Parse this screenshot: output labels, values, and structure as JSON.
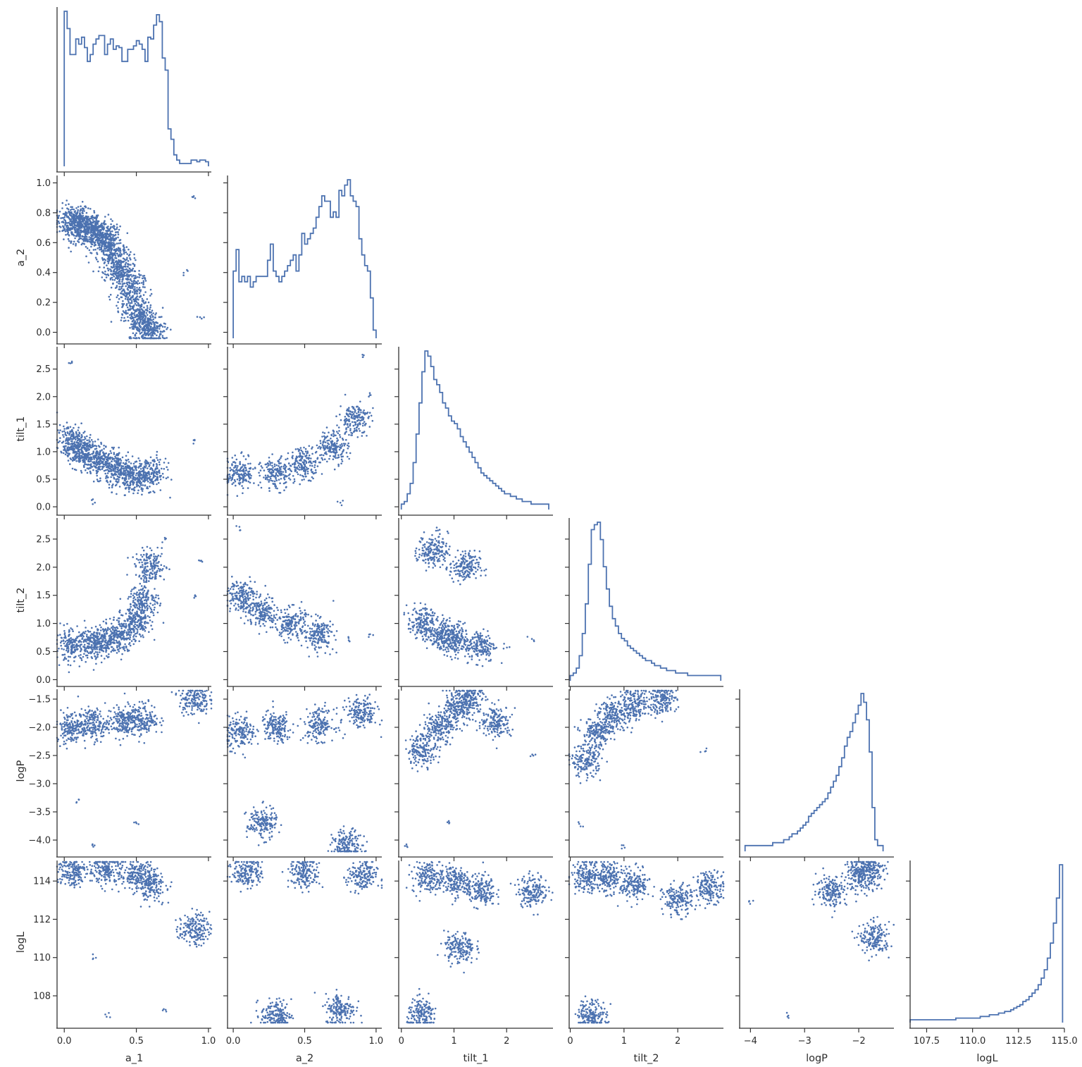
{
  "colors": {
    "series": "#4c72b0",
    "axis": "#333333",
    "background": "#ffffff"
  },
  "chart_data": {
    "type": "scatter",
    "layout": "corner pair plot",
    "diagonal": "step histogram",
    "off_diagonal": "scatter",
    "grid": false,
    "legend": "none",
    "variables": [
      "a_1",
      "a_2",
      "tilt_1",
      "tilt_2",
      "logP",
      "logL"
    ],
    "axes": {
      "a_1": {
        "label": "a_1",
        "range": [
          -0.05,
          1.02
        ],
        "ticks": [
          0.0,
          0.5,
          1.0
        ],
        "tick_labels": [
          "0.0",
          "0.5",
          "1.0"
        ]
      },
      "a_2": {
        "label": "a_2",
        "range": [
          -0.04,
          1.04
        ],
        "ticks": [
          0.0,
          0.5,
          1.0
        ],
        "tick_labels": [
          "0.0",
          "0.5",
          "1.0"
        ],
        "yticks": [
          0.0,
          0.2,
          0.4,
          0.6,
          0.8,
          1.0
        ],
        "ytick_labels": [
          "0.0",
          "0.2",
          "0.4",
          "0.6",
          "0.8",
          "1.0"
        ]
      },
      "tilt_1": {
        "label": "tilt_1",
        "range": [
          -0.05,
          2.88
        ],
        "ticks": [
          0,
          1,
          2
        ],
        "tick_labels": [
          "0",
          "1",
          "2"
        ],
        "yticks": [
          0.0,
          0.5,
          1.0,
          1.5,
          2.0,
          2.5
        ],
        "ytick_labels": [
          "0.0",
          "0.5",
          "1.0",
          "1.5",
          "2.0",
          "2.5"
        ]
      },
      "tilt_2": {
        "label": "tilt_2",
        "range": [
          -0.02,
          2.85
        ],
        "ticks": [
          0,
          1,
          2
        ],
        "tick_labels": [
          "0",
          "1",
          "2"
        ],
        "yticks": [
          0.0,
          0.5,
          1.0,
          1.5,
          2.0,
          2.5
        ],
        "ytick_labels": [
          "0.0",
          "0.5",
          "1.0",
          "1.5",
          "2.0",
          "2.5"
        ]
      },
      "logP": {
        "label": "logP",
        "range": [
          -4.2,
          -1.35
        ],
        "ticks": [
          -4,
          -3,
          -2
        ],
        "tick_labels": [
          "−4",
          "−3",
          "−2"
        ],
        "yticks": [
          -4.0,
          -3.5,
          -3.0,
          -2.5,
          -2.0,
          -1.5
        ],
        "ytick_labels": [
          "−4.0",
          "−3.5",
          "−3.0",
          "−2.5",
          "−2.0",
          "−1.5"
        ]
      },
      "logL": {
        "label": "logL",
        "range": [
          106.6,
          115.0
        ],
        "ticks": [
          107.5,
          110.0,
          112.5,
          115.0
        ],
        "tick_labels": [
          "107.5",
          "110.0",
          "112.5",
          "115.0"
        ],
        "yticks": [
          108,
          110,
          112,
          114
        ],
        "ytick_labels": [
          "108",
          "110",
          "112",
          "114"
        ]
      }
    },
    "histograms": {
      "a_1": {
        "start": 0.0,
        "end": 1.0,
        "counts": [
          88,
          78,
          63,
          63,
          72,
          69,
          73,
          67,
          59,
          63,
          69,
          72,
          74,
          74,
          63,
          69,
          72,
          66,
          68,
          67,
          59,
          59,
          66,
          66,
          68,
          71,
          69,
          66,
          59,
          73,
          72,
          80,
          86,
          82,
          61,
          54,
          20,
          14,
          5,
          2,
          0,
          0,
          0,
          0,
          2,
          2,
          1,
          2,
          2,
          1
        ]
      },
      "a_2": {
        "start": 0.0,
        "end": 1.0,
        "counts": [
          12,
          16,
          10,
          11,
          10,
          11,
          9,
          10,
          11,
          11,
          11,
          11,
          14,
          17,
          12,
          11,
          10,
          11,
          12,
          13,
          14,
          15,
          12,
          15,
          19,
          17,
          18,
          19,
          20,
          22,
          24,
          26,
          25,
          25,
          22,
          23,
          22,
          27,
          26,
          28,
          29,
          26,
          25,
          24,
          18,
          15,
          13,
          12,
          7,
          1
        ]
      },
      "tilt_1": {
        "start": 0.0,
        "end": 2.8,
        "counts": [
          1,
          2,
          5,
          9,
          17,
          28,
          40,
          52,
          60,
          58,
          54,
          49,
          47,
          44,
          40,
          38,
          35,
          33,
          32,
          30,
          27,
          25,
          23,
          21,
          19,
          17,
          15,
          13,
          12,
          11,
          10,
          9,
          8,
          7,
          6,
          5,
          5,
          4,
          4,
          3,
          3,
          2,
          2,
          2,
          1,
          1,
          1,
          1,
          1,
          1
        ]
      },
      "tilt_2": {
        "start": 0.0,
        "end": 2.8,
        "counts": [
          1,
          2,
          4,
          9,
          18,
          30,
          46,
          60,
          62,
          63,
          56,
          45,
          36,
          29,
          24,
          21,
          18,
          16,
          15,
          13,
          12,
          11,
          10,
          9,
          8,
          7,
          7,
          6,
          5,
          5,
          4,
          4,
          3,
          3,
          3,
          2,
          2,
          2,
          2,
          1,
          1,
          1,
          1,
          1,
          1,
          1,
          1,
          1,
          1,
          1
        ]
      },
      "logP": {
        "start": -4.1,
        "end": -1.55,
        "counts": [
          1,
          1,
          1,
          1,
          1,
          1,
          1,
          1,
          1,
          1,
          2,
          2,
          2,
          2,
          3,
          3,
          4,
          5,
          5,
          6,
          7,
          8,
          9,
          11,
          12,
          13,
          14,
          15,
          16,
          17,
          19,
          21,
          23,
          25,
          28,
          31,
          35,
          38,
          40,
          43,
          46,
          49,
          53,
          50,
          44,
          33,
          14,
          3,
          1,
          1
        ]
      },
      "logL": {
        "start": 106.6,
        "end": 114.9,
        "counts": [
          0,
          0,
          0,
          0,
          0,
          0,
          0,
          0,
          0,
          0,
          0,
          0,
          0,
          0,
          0,
          1,
          1,
          1,
          1,
          1,
          1,
          1,
          1,
          2,
          2,
          2,
          3,
          3,
          3,
          4,
          4,
          5,
          5,
          6,
          7,
          8,
          9,
          11,
          12,
          14,
          16,
          18,
          21,
          25,
          30,
          37,
          46,
          58,
          73,
          93
        ]
      }
    },
    "scatter": {
      "marker": "dot",
      "series": [
        {
          "x": "a_1",
          "y": "a_2",
          "points": [
            [
              0.05,
              0.75
            ],
            [
              0.1,
              0.72
            ],
            [
              0.15,
              0.7
            ],
            [
              0.2,
              0.68
            ],
            [
              0.25,
              0.65
            ],
            [
              0.3,
              0.6
            ],
            [
              0.35,
              0.5
            ],
            [
              0.4,
              0.4
            ],
            [
              0.45,
              0.3
            ],
            [
              0.5,
              0.15
            ],
            [
              0.55,
              0.05
            ],
            [
              0.6,
              0.02
            ],
            [
              0.85,
              0.4
            ],
            [
              0.9,
              0.9
            ],
            [
              0.95,
              0.1
            ]
          ]
        },
        {
          "x": "a_1",
          "y": "tilt_1",
          "points": [
            [
              0.05,
              1.2
            ],
            [
              0.1,
              1.0
            ],
            [
              0.2,
              0.9
            ],
            [
              0.3,
              0.8
            ],
            [
              0.4,
              0.6
            ],
            [
              0.5,
              0.55
            ],
            [
              0.6,
              0.6
            ],
            [
              0.9,
              1.2
            ],
            [
              0.05,
              2.6
            ],
            [
              0.2,
              0.1
            ]
          ]
        },
        {
          "x": "a_1",
          "y": "tilt_2",
          "points": [
            [
              0.05,
              0.6
            ],
            [
              0.2,
              0.65
            ],
            [
              0.3,
              0.7
            ],
            [
              0.4,
              0.8
            ],
            [
              0.5,
              1.0
            ],
            [
              0.55,
              1.4
            ],
            [
              0.6,
              2.0
            ],
            [
              0.7,
              2.5
            ],
            [
              0.9,
              1.5
            ],
            [
              0.95,
              2.1
            ]
          ]
        },
        {
          "x": "a_1",
          "y": "logP",
          "points": [
            [
              0.05,
              -2.0
            ],
            [
              0.2,
              -1.95
            ],
            [
              0.4,
              -1.9
            ],
            [
              0.55,
              -1.85
            ],
            [
              0.9,
              -1.5
            ],
            [
              0.1,
              -3.3
            ],
            [
              0.5,
              -3.7
            ],
            [
              0.2,
              -4.1
            ]
          ]
        },
        {
          "x": "a_1",
          "y": "logL",
          "points": [
            [
              0.05,
              114.5
            ],
            [
              0.3,
              114.6
            ],
            [
              0.5,
              114.3
            ],
            [
              0.6,
              113.8
            ],
            [
              0.9,
              111.5
            ],
            [
              0.3,
              107.0
            ],
            [
              0.7,
              107.3
            ],
            [
              0.2,
              110.0
            ]
          ]
        },
        {
          "x": "a_2",
          "y": "tilt_1",
          "points": [
            [
              0.05,
              0.6
            ],
            [
              0.3,
              0.6
            ],
            [
              0.5,
              0.8
            ],
            [
              0.7,
              1.1
            ],
            [
              0.85,
              1.6
            ],
            [
              0.95,
              2.0
            ],
            [
              0.9,
              2.7
            ],
            [
              0.75,
              0.1
            ]
          ]
        },
        {
          "x": "a_2",
          "y": "tilt_2",
          "points": [
            [
              0.05,
              1.5
            ],
            [
              0.2,
              1.2
            ],
            [
              0.4,
              1.0
            ],
            [
              0.6,
              0.8
            ],
            [
              0.8,
              0.7
            ],
            [
              0.95,
              0.8
            ],
            [
              0.05,
              2.7
            ]
          ]
        },
        {
          "x": "a_2",
          "y": "logP",
          "points": [
            [
              0.05,
              -2.1
            ],
            [
              0.3,
              -2.0
            ],
            [
              0.6,
              -1.95
            ],
            [
              0.9,
              -1.75
            ],
            [
              0.2,
              -3.7
            ],
            [
              0.8,
              -4.1
            ]
          ]
        },
        {
          "x": "a_2",
          "y": "logL",
          "points": [
            [
              0.1,
              114.5
            ],
            [
              0.5,
              114.4
            ],
            [
              0.9,
              114.2
            ],
            [
              0.3,
              107.0
            ],
            [
              0.75,
              107.3
            ]
          ]
        },
        {
          "x": "tilt_1",
          "y": "tilt_2",
          "points": [
            [
              0.4,
              1.0
            ],
            [
              0.6,
              2.3
            ],
            [
              0.8,
              0.8
            ],
            [
              1.0,
              0.7
            ],
            [
              1.2,
              2.0
            ],
            [
              1.5,
              0.6
            ],
            [
              2.0,
              0.6
            ],
            [
              2.5,
              0.7
            ],
            [
              0.7,
              2.7
            ]
          ]
        },
        {
          "x": "tilt_1",
          "y": "logP",
          "points": [
            [
              0.4,
              -2.4
            ],
            [
              0.7,
              -2.0
            ],
            [
              1.0,
              -1.7
            ],
            [
              1.3,
              -1.5
            ],
            [
              1.8,
              -1.9
            ],
            [
              2.5,
              -2.5
            ],
            [
              0.9,
              -3.7
            ],
            [
              0.1,
              -4.1
            ]
          ]
        },
        {
          "x": "tilt_1",
          "y": "logL",
          "points": [
            [
              0.5,
              114.2
            ],
            [
              1.0,
              114.0
            ],
            [
              1.5,
              113.5
            ],
            [
              2.5,
              113.5
            ],
            [
              1.1,
              110.5
            ],
            [
              0.4,
              107.0
            ]
          ]
        },
        {
          "x": "tilt_2",
          "y": "logP",
          "points": [
            [
              0.3,
              -2.6
            ],
            [
              0.5,
              -2.1
            ],
            [
              0.8,
              -1.8
            ],
            [
              1.2,
              -1.6
            ],
            [
              1.7,
              -1.5
            ],
            [
              2.5,
              -2.4
            ],
            [
              0.2,
              -3.7
            ],
            [
              1.0,
              -4.1
            ]
          ]
        },
        {
          "x": "tilt_2",
          "y": "logL",
          "points": [
            [
              0.3,
              114.3
            ],
            [
              0.7,
              114.2
            ],
            [
              1.2,
              113.8
            ],
            [
              2.0,
              113.0
            ],
            [
              2.6,
              113.7
            ],
            [
              0.4,
              107.0
            ]
          ]
        },
        {
          "x": "logP",
          "y": "logL",
          "points": [
            [
              -1.8,
              114.5
            ],
            [
              -2.0,
              114.3
            ],
            [
              -2.5,
              113.5
            ],
            [
              -1.7,
              111.0
            ],
            [
              -4.0,
              112.9
            ],
            [
              -3.3,
              107.0
            ],
            [
              -1.6,
              110.5
            ]
          ]
        }
      ]
    }
  }
}
